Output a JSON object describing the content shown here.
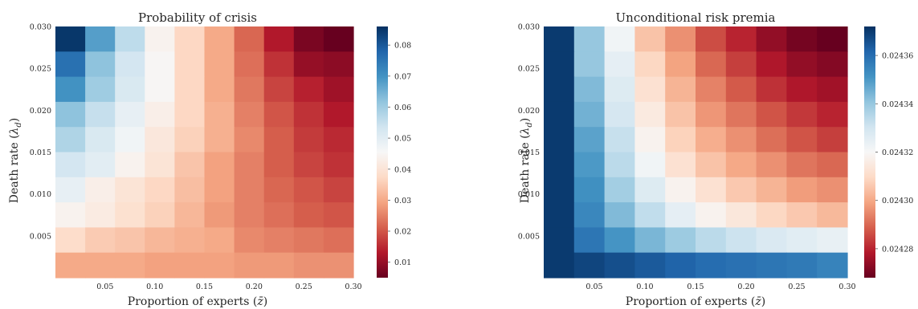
{
  "colormap": {
    "name": "RdBu",
    "stops": [
      "#67001f",
      "#b2182b",
      "#d6604d",
      "#f4a582",
      "#fddbc7",
      "#f7f7f7",
      "#d1e5f0",
      "#92c5de",
      "#4393c3",
      "#2166ac",
      "#053061"
    ]
  },
  "chart_data": [
    {
      "type": "heatmap",
      "title": "Probability of crisis",
      "xlabel": "Proportion of experts ($\\bar{z}$)",
      "ylabel": "Death rate ($\\lambda_d$)",
      "x_ticks": [
        "0.05",
        "0.10",
        "0.15",
        "0.20",
        "0.25",
        "0.30"
      ],
      "y_ticks": [
        "0.005",
        "0.010",
        "0.015",
        "0.020",
        "0.025",
        "0.030"
      ],
      "x_top_label": "",
      "y_top_label": "0.030",
      "grid": false,
      "rows_top_to_bottom": true,
      "n_cols": 10,
      "n_rows": 10,
      "colorbar": {
        "min": 0.005,
        "max": 0.086,
        "ticks": [
          "0.01",
          "0.02",
          "0.03",
          "0.04",
          "0.05",
          "0.06",
          "0.07",
          "0.08"
        ],
        "tick_values": [
          0.01,
          0.02,
          0.03,
          0.04,
          0.05,
          0.06,
          0.07,
          0.08
        ]
      },
      "values": [
        [
          0.085,
          0.068,
          0.056,
          0.044,
          0.037,
          0.03,
          0.022,
          0.013,
          0.007,
          0.005
        ],
        [
          0.076,
          0.062,
          0.053,
          0.045,
          0.037,
          0.03,
          0.023,
          0.016,
          0.01,
          0.009
        ],
        [
          0.07,
          0.06,
          0.052,
          0.045,
          0.037,
          0.03,
          0.024,
          0.018,
          0.014,
          0.011
        ],
        [
          0.062,
          0.055,
          0.049,
          0.043,
          0.037,
          0.031,
          0.025,
          0.02,
          0.016,
          0.013
        ],
        [
          0.058,
          0.052,
          0.047,
          0.041,
          0.036,
          0.031,
          0.026,
          0.021,
          0.017,
          0.015
        ],
        [
          0.053,
          0.05,
          0.044,
          0.04,
          0.034,
          0.029,
          0.025,
          0.021,
          0.018,
          0.016
        ],
        [
          0.049,
          0.043,
          0.04,
          0.037,
          0.033,
          0.029,
          0.025,
          0.022,
          0.02,
          0.018
        ],
        [
          0.044,
          0.042,
          0.039,
          0.036,
          0.032,
          0.028,
          0.025,
          0.023,
          0.021,
          0.02
        ],
        [
          0.038,
          0.035,
          0.034,
          0.032,
          0.031,
          0.03,
          0.026,
          0.025,
          0.024,
          0.023
        ],
        [
          0.03,
          0.03,
          0.03,
          0.029,
          0.029,
          0.029,
          0.028,
          0.028,
          0.027,
          0.027
        ]
      ]
    },
    {
      "type": "heatmap",
      "title": "Unconditional risk premia",
      "xlabel": "Proportion of experts ($\\bar{z}$)",
      "ylabel": "Death rate ($\\lambda_d$)",
      "x_ticks": [
        "0.05",
        "0.10",
        "0.15",
        "0.20",
        "0.25",
        "0.30"
      ],
      "y_ticks": [
        "0.005",
        "0.010",
        "0.015",
        "0.020",
        "0.025",
        "0.030"
      ],
      "x_top_label": "",
      "y_top_label": "0.030",
      "grid": false,
      "rows_top_to_bottom": true,
      "n_cols": 10,
      "n_rows": 10,
      "colorbar": {
        "min": 0.024268,
        "max": 0.024372,
        "ticks": [
          "0.02428",
          "0.02430",
          "0.02432",
          "0.02434",
          "0.02436"
        ],
        "tick_values": [
          0.02428,
          0.0243,
          0.02432,
          0.02434,
          0.02436
        ]
      },
      "values": [
        [
          0.02437,
          0.02434,
          0.024322,
          0.024305,
          0.024296,
          0.024286,
          0.02428,
          0.024274,
          0.02427,
          0.024268
        ],
        [
          0.02437,
          0.02434,
          0.024325,
          0.024309,
          0.024299,
          0.02429,
          0.024284,
          0.024278,
          0.024274,
          0.024272
        ],
        [
          0.02437,
          0.024343,
          0.024327,
          0.024312,
          0.024302,
          0.024294,
          0.024288,
          0.024282,
          0.024278,
          0.024276
        ],
        [
          0.02437,
          0.024345,
          0.024329,
          0.024315,
          0.024305,
          0.024297,
          0.024292,
          0.024287,
          0.024283,
          0.02428
        ],
        [
          0.02437,
          0.024348,
          0.024332,
          0.024318,
          0.024308,
          0.024301,
          0.024296,
          0.024291,
          0.024287,
          0.024284
        ],
        [
          0.02437,
          0.02435,
          0.024334,
          0.024322,
          0.024312,
          0.024305,
          0.0243,
          0.024296,
          0.024292,
          0.02429
        ],
        [
          0.02437,
          0.024352,
          0.024338,
          0.024327,
          0.024318,
          0.024312,
          0.024306,
          0.024302,
          0.024298,
          0.024296
        ],
        [
          0.02437,
          0.024354,
          0.024343,
          0.024333,
          0.024325,
          0.024318,
          0.024314,
          0.024309,
          0.024306,
          0.024303
        ],
        [
          0.02437,
          0.024358,
          0.024351,
          0.024344,
          0.024339,
          0.024334,
          0.024331,
          0.024328,
          0.024326,
          0.024324
        ],
        [
          0.02437,
          0.024368,
          0.024366,
          0.024364,
          0.024362,
          0.02436,
          0.024359,
          0.024358,
          0.024357,
          0.024355
        ]
      ]
    }
  ]
}
